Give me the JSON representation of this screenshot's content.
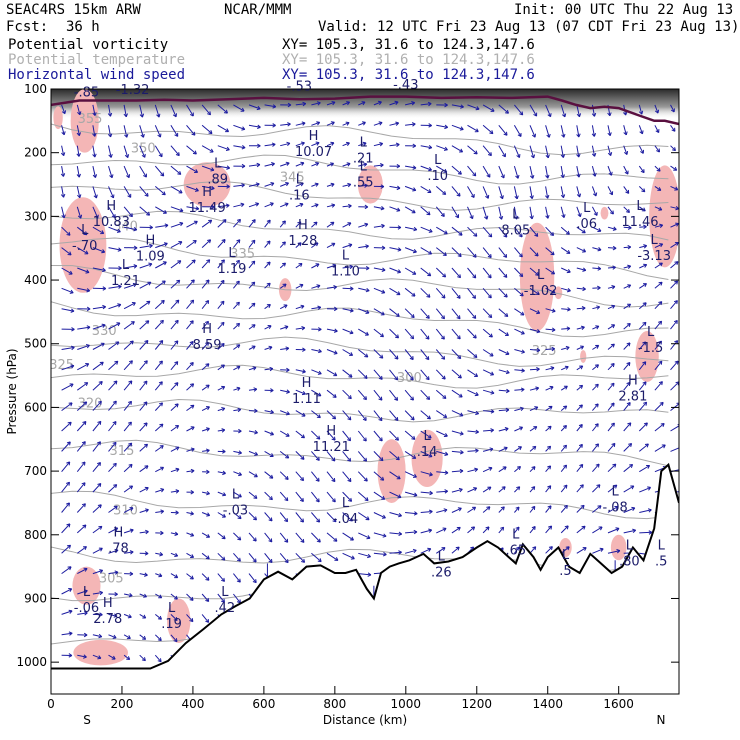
{
  "header": {
    "model": "SEAC4RS 15km ARW",
    "org": "NCAR/MMM",
    "init": "Init: 00 UTC Thu 22 Aug 13",
    "fcst_label": "Fcst:",
    "fcst_value": "36 h",
    "valid": "Valid: 12 UTC Fri 23 Aug 13 (07 CDT Fri 23 Aug 13)",
    "fields": [
      {
        "name": "Potential vorticity",
        "xy": "XY= 105.3, 31.6 to 124.3,147.6"
      },
      {
        "name": "Potential temperature",
        "xy": "XY= 105.3, 31.6 to 124.3,147.6"
      },
      {
        "name": "Horizontal wind speed",
        "xy": "XY= 105.3, 31.6 to 124.3,147.6"
      }
    ]
  },
  "colors": {
    "pv_shade": "#f4b6b6",
    "theta": "#a8a8a8",
    "wind": "#1c1ca0",
    "terrain": "#000000",
    "tropopause": "#5a1040"
  },
  "chart_data": {
    "type": "cross-section",
    "xlabel": "Distance (km)",
    "ylabel": "Pressure (hPa)",
    "xlim": [
      0,
      1770
    ],
    "ylim": [
      1050,
      100
    ],
    "x_ticks": [
      0,
      200,
      400,
      600,
      800,
      1000,
      1200,
      1400,
      1600
    ],
    "y_ticks": [
      100,
      200,
      300,
      400,
      500,
      600,
      700,
      800,
      900,
      1000
    ],
    "end_labels": {
      "left": "S",
      "right": "N"
    },
    "theta_labels": [
      {
        "text": "355",
        "x": 110,
        "p": 153
      },
      {
        "text": "350",
        "x": 260,
        "p": 200
      },
      {
        "text": "345",
        "x": 680,
        "p": 245
      },
      {
        "text": "340",
        "x": 210,
        "p": 322
      },
      {
        "text": "335",
        "x": 540,
        "p": 365
      },
      {
        "text": "330",
        "x": 150,
        "p": 486
      },
      {
        "text": "325",
        "x": 30,
        "p": 540
      },
      {
        "text": "320",
        "x": 110,
        "p": 600
      },
      {
        "text": "315",
        "x": 200,
        "p": 675
      },
      {
        "text": "310",
        "x": 210,
        "p": 768
      },
      {
        "text": "305",
        "x": 170,
        "p": 875
      },
      {
        "text": "300",
        "x": 1010,
        "p": 560
      },
      {
        "text": "325",
        "x": 1390,
        "p": 518
      }
    ],
    "hl_labels": [
      {
        "type": "H",
        "value": "10.83",
        "x": 170,
        "p": 312
      },
      {
        "type": "L",
        "value": "-.70",
        "x": 95,
        "p": 350
      },
      {
        "type": "H",
        "value": "1.09",
        "x": 280,
        "p": 366
      },
      {
        "type": "L",
        "value": "1.21",
        "x": 210,
        "p": 405
      },
      {
        "type": "L",
        "value": ".89",
        "x": 470,
        "p": 245
      },
      {
        "type": "H",
        "value": "11.49",
        "x": 440,
        "p": 290
      },
      {
        "type": "L",
        "value": "1.19",
        "x": 510,
        "p": 386
      },
      {
        "type": "H",
        "value": "10.07",
        "x": 740,
        "p": 202
      },
      {
        "type": "L",
        "value": ".16",
        "x": 700,
        "p": 270
      },
      {
        "type": "H",
        "value": "1.28",
        "x": 710,
        "p": 342
      },
      {
        "type": "L",
        "value": "1.10",
        "x": 830,
        "p": 390
      },
      {
        "type": "L",
        "value": ".21",
        "x": 880,
        "p": 212
      },
      {
        "type": "L",
        "value": ".55",
        "x": 880,
        "p": 250
      },
      {
        "type": "L",
        "value": ".10",
        "x": 1090,
        "p": 240
      },
      {
        "type": "L",
        "value": "8.05",
        "x": 1310,
        "p": 325
      },
      {
        "type": "L",
        "value": "-1.02",
        "x": 1380,
        "p": 420
      },
      {
        "type": "L",
        "value": ".06",
        "x": 1510,
        "p": 315
      },
      {
        "type": "L",
        "value": "11.46",
        "x": 1660,
        "p": 312
      },
      {
        "type": "L",
        "value": "-3.13",
        "x": 1700,
        "p": 365
      },
      {
        "type": "H",
        "value": "8.59",
        "x": 440,
        "p": 505
      },
      {
        "type": "H",
        "value": "1.11",
        "x": 720,
        "p": 590
      },
      {
        "type": "H",
        "value": "11.21",
        "x": 790,
        "p": 665
      },
      {
        "type": "L",
        "value": ".14",
        "x": 1060,
        "p": 673
      },
      {
        "type": "L",
        "value": "-.03",
        "x": 520,
        "p": 765
      },
      {
        "type": "L",
        "value": "-.04",
        "x": 830,
        "p": 778
      },
      {
        "type": "L",
        "value": "-.08",
        "x": 1590,
        "p": 760
      },
      {
        "type": "H",
        "value": "2.81",
        "x": 1640,
        "p": 586
      },
      {
        "type": "L",
        "value": "-1.5",
        "x": 1690,
        "p": 510
      },
      {
        "type": "H",
        "value": ".78",
        "x": 190,
        "p": 825
      },
      {
        "type": "L",
        "value": "-.06",
        "x": 100,
        "p": 918
      },
      {
        "type": "H",
        "value": "2.78",
        "x": 160,
        "p": 935
      },
      {
        "type": "L",
        "value": ".19",
        "x": 340,
        "p": 943
      },
      {
        "type": "L",
        "value": ".42",
        "x": 490,
        "p": 918
      },
      {
        "type": "L",
        "value": ".26",
        "x": 1100,
        "p": 862
      },
      {
        "type": "L",
        "value": ".65",
        "x": 1310,
        "p": 828
      },
      {
        "type": "L",
        "value": ".5",
        "x": 1450,
        "p": 860
      },
      {
        "type": "L",
        "value": ".80",
        "x": 1630,
        "p": 845
      },
      {
        "type": "L",
        "value": ".5",
        "x": 1720,
        "p": 845
      }
    ],
    "top_labels": [
      "-1.32",
      "-.53",
      "-.43",
      "-.85"
    ]
  }
}
